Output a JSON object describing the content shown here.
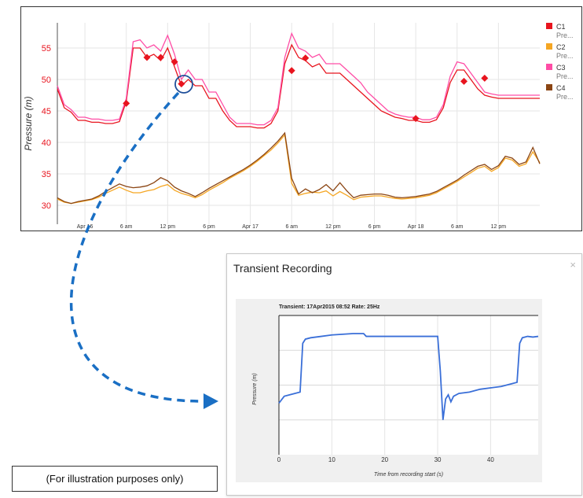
{
  "chart_data": [
    {
      "type": "line",
      "title": "",
      "ylabel": "Pressure (m)",
      "xlabel": "",
      "ylim": [
        27,
        59
      ],
      "xlim": [
        0,
        70
      ],
      "y_ticks": [
        30,
        35,
        40,
        45,
        50,
        55
      ],
      "x_ticks": [
        {
          "x": 4,
          "label": "Apr 16"
        },
        {
          "x": 10,
          "label": "6 am"
        },
        {
          "x": 16,
          "label": "12 pm"
        },
        {
          "x": 22,
          "label": "6 pm"
        },
        {
          "x": 28,
          "label": "Apr 17"
        },
        {
          "x": 34,
          "label": "6 am"
        },
        {
          "x": 40,
          "label": "12 pm"
        },
        {
          "x": 46,
          "label": "6 pm"
        },
        {
          "x": 52,
          "label": "Apr 18"
        },
        {
          "x": 58,
          "label": "6 am"
        },
        {
          "x": 64,
          "label": "12 pm"
        }
      ],
      "x": [
        0,
        1,
        2,
        3,
        4,
        5,
        6,
        7,
        8,
        9,
        10,
        11,
        12,
        13,
        14,
        15,
        16,
        17,
        18,
        19,
        20,
        21,
        22,
        23,
        24,
        25,
        26,
        27,
        28,
        29,
        30,
        31,
        32,
        33,
        34,
        35,
        36,
        37,
        38,
        39,
        40,
        41,
        42,
        43,
        44,
        45,
        46,
        47,
        48,
        49,
        50,
        51,
        52,
        53,
        54,
        55,
        56,
        57,
        58,
        59,
        60,
        61,
        62,
        63,
        64,
        65,
        66,
        67,
        68,
        69,
        70
      ],
      "series": [
        {
          "name": "C1",
          "color": "#e8141e",
          "values": [
            48.5,
            45.5,
            44.8,
            43.5,
            43.5,
            43.2,
            43.2,
            43.0,
            43.0,
            43.3,
            46.5,
            55.0,
            55.0,
            53.5,
            54.0,
            53.0,
            55.0,
            52.0,
            49.0,
            50.0,
            49.0,
            49.0,
            47.0,
            47.0,
            45.0,
            43.5,
            42.5,
            42.5,
            42.5,
            42.3,
            42.3,
            43.0,
            45.0,
            52.5,
            55.5,
            53.5,
            53.0,
            52.0,
            52.5,
            51.0,
            51.0,
            51.0,
            50.0,
            49.0,
            48.0,
            47.0,
            46.0,
            45.0,
            44.5,
            44.0,
            43.8,
            43.5,
            43.5,
            43.2,
            43.2,
            43.6,
            45.5,
            49.5,
            51.5,
            51.5,
            50.0,
            48.5,
            47.5,
            47.2,
            47.0,
            47.0,
            47.0,
            47.0,
            47.0,
            47.0,
            47.0
          ]
        },
        {
          "name": "C2",
          "color": "#f5a623",
          "values": [
            31.0,
            30.5,
            30.3,
            30.5,
            30.7,
            30.9,
            31.3,
            31.9,
            32.4,
            32.9,
            32.4,
            32.0,
            32.0,
            32.3,
            32.5,
            33.0,
            33.3,
            32.4,
            31.9,
            31.6,
            31.2,
            31.7,
            32.4,
            33.0,
            33.6,
            34.3,
            34.9,
            35.5,
            36.2,
            37.0,
            37.9,
            38.8,
            39.9,
            41.2,
            33.5,
            31.6,
            31.9,
            32.1,
            32.0,
            32.3,
            31.5,
            32.2,
            31.6,
            30.9,
            31.3,
            31.4,
            31.5,
            31.5,
            31.3,
            31.1,
            31.0,
            31.1,
            31.2,
            31.4,
            31.6,
            32.0,
            32.6,
            33.2,
            33.8,
            34.5,
            35.2,
            35.9,
            36.2,
            35.4,
            36.0,
            37.5,
            37.2,
            36.2,
            36.6,
            38.5,
            36.8
          ]
        },
        {
          "name": "C3",
          "color": "#ff4da6",
          "values": [
            49.0,
            46.0,
            45.2,
            44.0,
            44.0,
            43.7,
            43.7,
            43.5,
            43.5,
            43.7,
            47.0,
            56.0,
            56.3,
            55.0,
            55.5,
            54.5,
            57.0,
            54.0,
            50.0,
            51.5,
            50.0,
            50.0,
            48.0,
            48.0,
            46.0,
            44.0,
            43.0,
            43.0,
            43.0,
            42.8,
            42.8,
            43.5,
            45.5,
            53.5,
            57.3,
            55.0,
            54.5,
            53.5,
            54.0,
            52.5,
            52.5,
            52.5,
            51.5,
            50.5,
            49.5,
            48.0,
            47.0,
            46.0,
            45.0,
            44.5,
            44.2,
            44.0,
            44.0,
            43.6,
            43.6,
            44.0,
            46.0,
            50.5,
            52.8,
            52.5,
            51.0,
            49.5,
            48.0,
            47.7,
            47.5,
            47.5,
            47.5,
            47.5,
            47.5,
            47.5,
            47.5
          ]
        },
        {
          "name": "C4",
          "color": "#8b4513",
          "values": [
            31.2,
            30.6,
            30.3,
            30.6,
            30.8,
            31.0,
            31.5,
            32.2,
            32.8,
            33.4,
            33.0,
            32.8,
            32.9,
            33.1,
            33.6,
            34.4,
            33.9,
            32.9,
            32.3,
            31.9,
            31.4,
            32.0,
            32.7,
            33.3,
            33.9,
            34.5,
            35.1,
            35.7,
            36.4,
            37.2,
            38.1,
            39.1,
            40.2,
            41.5,
            34.3,
            31.8,
            32.6,
            32.0,
            32.5,
            33.3,
            32.3,
            33.6,
            32.3,
            31.2,
            31.6,
            31.7,
            31.8,
            31.8,
            31.6,
            31.3,
            31.2,
            31.3,
            31.4,
            31.6,
            31.8,
            32.2,
            32.8,
            33.4,
            34.0,
            34.8,
            35.5,
            36.2,
            36.5,
            35.7,
            36.3,
            37.8,
            37.5,
            36.5,
            36.9,
            39.2,
            36.6
          ]
        }
      ],
      "markers": [
        {
          "x": 10,
          "y": 46.2
        },
        {
          "x": 13,
          "y": 53.5
        },
        {
          "x": 15,
          "y": 53.5
        },
        {
          "x": 17,
          "y": 52.8
        },
        {
          "x": 18,
          "y": 49.3
        },
        {
          "x": 34,
          "y": 51.4
        },
        {
          "x": 36,
          "y": 53.4
        },
        {
          "x": 52,
          "y": 43.8
        },
        {
          "x": 59,
          "y": 49.7
        },
        {
          "x": 62,
          "y": 50.2
        }
      ],
      "legend": [
        {
          "name": "C1",
          "sub": "Pre...",
          "color": "#e8141e"
        },
        {
          "name": "C2",
          "sub": "Pre...",
          "color": "#f5a623"
        },
        {
          "name": "C3",
          "sub": "Pre...",
          "color": "#ff4da6"
        },
        {
          "name": "C4",
          "sub": "Pre...",
          "color": "#8b4513"
        }
      ],
      "legend_position": "right"
    },
    {
      "type": "line",
      "title": "Transient: 17Apr2015 08:52 Rate: 25Hz",
      "xlabel": "Time from recording start (s)",
      "ylabel": "Pressure (m)",
      "xlim": [
        0,
        49
      ],
      "ylim": [
        0,
        100
      ],
      "x_ticks": [
        0,
        10,
        20,
        30,
        40
      ],
      "series": [
        {
          "name": "Transient",
          "color": "#3a6fd8",
          "x": [
            0,
            1,
            2,
            3,
            4,
            4.5,
            5,
            6,
            8,
            10,
            12,
            14,
            16,
            16.5,
            18,
            20,
            22,
            24,
            26,
            28,
            30,
            30.5,
            31,
            31.5,
            32,
            32.5,
            33,
            34,
            36,
            38,
            40,
            42,
            44,
            45,
            45.5,
            46,
            47,
            48,
            49
          ],
          "values": [
            37,
            42,
            43,
            44,
            45,
            80,
            83,
            84,
            85,
            86,
            86.5,
            87,
            87,
            85,
            85,
            85,
            85,
            85,
            85,
            85,
            85,
            60,
            25,
            40,
            43,
            38,
            42,
            44,
            45,
            47,
            48,
            49,
            51,
            52,
            80,
            84,
            85,
            84.5,
            85
          ]
        }
      ]
    }
  ],
  "dialog": {
    "title": "Transient Recording",
    "close_symbol": "×"
  },
  "note": {
    "text": "(For illustration purposes only)"
  },
  "colors": {
    "arrow": "#1a6fc4",
    "highlight_circle": "#1f4f9a",
    "marker": "#e8141e"
  }
}
